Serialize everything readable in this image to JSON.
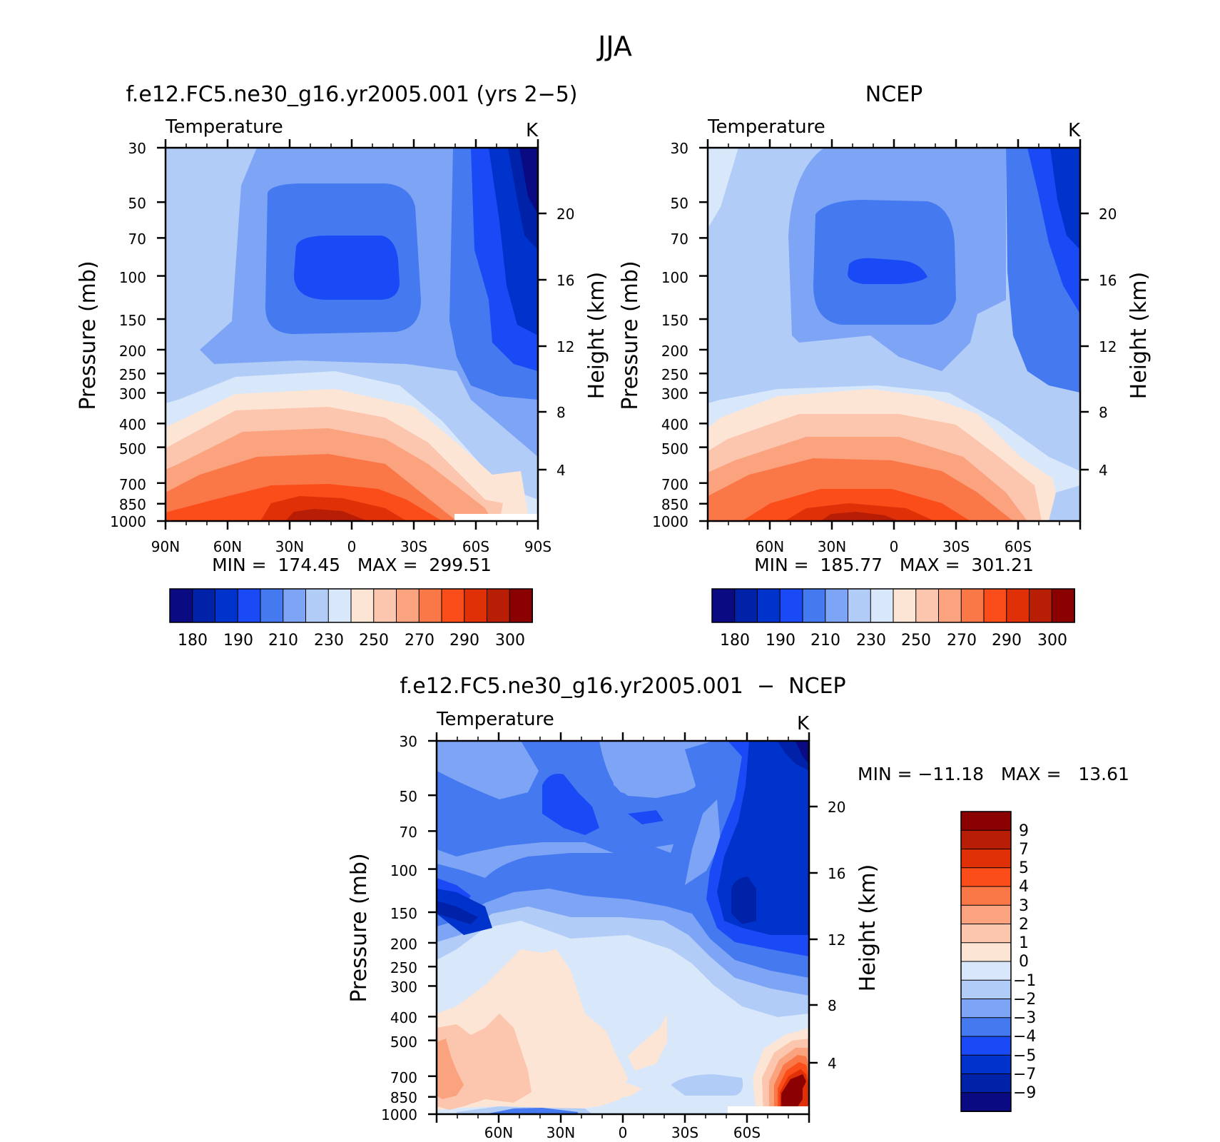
{
  "figure": {
    "title": "JJA"
  },
  "chart_data": [
    {
      "type": "contour",
      "title": "f.e12.FC5.ne30_g16.yr2005.001 (yrs 2−5)",
      "subtitle_left": "Temperature",
      "subtitle_right": "K",
      "ylabel": "Pressure (mb)",
      "ylabel_right": "Height (km)",
      "x_ticklabels": [
        "90N",
        "60N",
        "30N",
        "0",
        "30S",
        "60S",
        "90S"
      ],
      "y_ticklabels": [
        "30",
        "50",
        "70",
        "100",
        "150",
        "200",
        "250",
        "300",
        "400",
        "500",
        "700",
        "850",
        "1000"
      ],
      "y_right_ticklabels": [
        "20",
        "16",
        "12",
        "8",
        "4"
      ],
      "stats": "MIN =  174.45   MAX =  299.51",
      "min": 174.45,
      "max": 299.51,
      "colorbar_labels": [
        "180",
        "190",
        "210",
        "230",
        "250",
        "270",
        "290",
        "300"
      ]
    },
    {
      "type": "contour",
      "title": "NCEP",
      "subtitle_left": "Temperature",
      "subtitle_right": "K",
      "ylabel": "Pressure (mb)",
      "ylabel_right": "Height (km)",
      "x_ticklabels": [
        "60N",
        "30N",
        "0",
        "30S",
        "60S"
      ],
      "y_ticklabels": [
        "30",
        "50",
        "70",
        "100",
        "150",
        "200",
        "250",
        "300",
        "400",
        "500",
        "700",
        "850",
        "1000"
      ],
      "y_right_ticklabels": [
        "20",
        "16",
        "12",
        "8",
        "4"
      ],
      "stats": "MIN =  185.77   MAX =  301.21",
      "min": 185.77,
      "max": 301.21,
      "colorbar_labels": [
        "180",
        "190",
        "210",
        "230",
        "250",
        "270",
        "290",
        "300"
      ]
    },
    {
      "type": "contour",
      "title": "f.e12.FC5.ne30_g16.yr2005.001  −  NCEP",
      "subtitle_left": "Temperature",
      "subtitle_right": "K",
      "ylabel": "Pressure (mb)",
      "ylabel_right": "Height (km)",
      "x_ticklabels": [
        "60N",
        "30N",
        "0",
        "30S",
        "60S"
      ],
      "y_ticklabels": [
        "30",
        "50",
        "70",
        "100",
        "150",
        "200",
        "250",
        "300",
        "400",
        "500",
        "700",
        "850",
        "1000"
      ],
      "y_right_ticklabels": [
        "20",
        "16",
        "12",
        "8",
        "4"
      ],
      "stats": "MIN = −11.18   MAX =   13.61",
      "min": -11.18,
      "max": 13.61,
      "colorbar_labels": [
        "9",
        "7",
        "5",
        "4",
        "3",
        "2",
        "1",
        "0",
        "−1",
        "−2",
        "−3",
        "−4",
        "−5",
        "−7",
        "−9"
      ]
    }
  ],
  "colors": {
    "temp_scale": [
      "#0a0a82",
      "#0022a8",
      "#0033cc",
      "#1a4af5",
      "#4479f0",
      "#7ea4f6",
      "#b2ccf8",
      "#d8e8fa",
      "#fde5d6",
      "#fcc5ae",
      "#fba27f",
      "#fa7748",
      "#fa4d1a",
      "#e03008",
      "#b81e06",
      "#8b0000"
    ],
    "diff_scale": [
      "#8b0000",
      "#b81e06",
      "#e03008",
      "#fa4d1a",
      "#fa7748",
      "#fba27f",
      "#fcc5ae",
      "#fde5d6",
      "#d8e8fa",
      "#b2ccf8",
      "#7ea4f6",
      "#4479f0",
      "#1a4af5",
      "#0033cc",
      "#0022a8",
      "#0a0a82"
    ]
  }
}
